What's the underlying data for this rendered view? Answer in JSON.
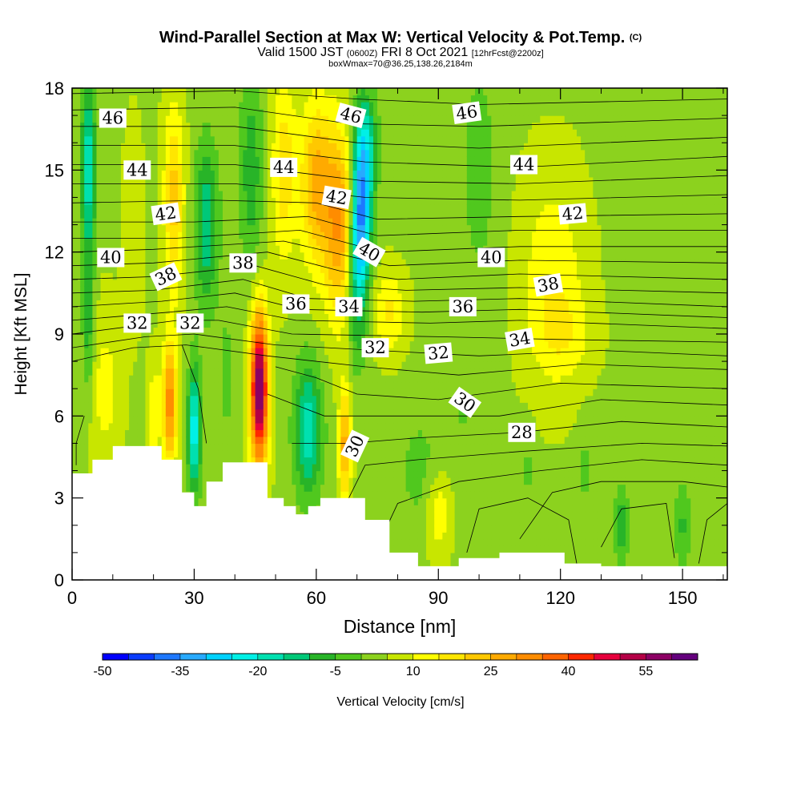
{
  "header": {
    "title_main": "Wind-Parallel Section at Max W: Vertical Velocity & Pot.Temp.",
    "title_copyright": "(C)",
    "valid_prefix": "Valid 1500 JST",
    "valid_utc": "(0600Z)",
    "valid_date": "FRI 8 Oct 2021",
    "forecast": "[12hrFcst@2200z]",
    "box_info": "boxWmax=70@36.25,138.26,2184m"
  },
  "chart_data": {
    "type": "heatmap",
    "xlabel": "Distance [nm]",
    "ylabel": "Height [Kft MSL]",
    "xlim": [
      0,
      161
    ],
    "ylim": [
      0,
      18
    ],
    "x_ticks": [
      0,
      30,
      60,
      90,
      120,
      150
    ],
    "y_ticks": [
      0,
      3,
      6,
      9,
      12,
      15,
      18
    ],
    "colorbar": {
      "label": "Vertical Velocity [cm/s]",
      "ticks": [
        -50,
        -35,
        -20,
        -5,
        10,
        25,
        40,
        55
      ],
      "min": -50,
      "max": 65,
      "step": 5,
      "colors": [
        "#0000ff",
        "#0a3cff",
        "#1e78ff",
        "#28aaff",
        "#00d2ff",
        "#00f0e6",
        "#00e0b0",
        "#00c878",
        "#28b428",
        "#50c81e",
        "#8cd21e",
        "#c8e600",
        "#ffff00",
        "#ffe600",
        "#ffc800",
        "#ffaa00",
        "#ff8c00",
        "#ff6400",
        "#ff2800",
        "#e6003c",
        "#b40046",
        "#8c0064",
        "#64007d"
      ]
    },
    "terrain_kft": [
      [
        0,
        3.9
      ],
      [
        5,
        4.4
      ],
      [
        10,
        4.9
      ],
      [
        18,
        4.9
      ],
      [
        22,
        4.4
      ],
      [
        27,
        3.2
      ],
      [
        30,
        2.7
      ],
      [
        33,
        3.6
      ],
      [
        37,
        4.3
      ],
      [
        44,
        4.3
      ],
      [
        48,
        3.0
      ],
      [
        52,
        2.7
      ],
      [
        55,
        2.4
      ],
      [
        58,
        2.7
      ],
      [
        61,
        3.0
      ],
      [
        68,
        3.0
      ],
      [
        72,
        2.2
      ],
      [
        78,
        1.0
      ],
      [
        85,
        0.5
      ],
      [
        90,
        0.5
      ],
      [
        95,
        0.8
      ],
      [
        105,
        1.0
      ],
      [
        115,
        1.0
      ],
      [
        121,
        0.6
      ],
      [
        130,
        0.5
      ],
      [
        161,
        0.5
      ]
    ],
    "theta_labels": [
      {
        "text": "46",
        "x": 10,
        "y": 16.9,
        "angle": 0
      },
      {
        "text": "46",
        "x": 68.5,
        "y": 17.0,
        "angle": 15
      },
      {
        "text": "46",
        "x": 97,
        "y": 17.1,
        "angle": -8
      },
      {
        "text": "44",
        "x": 16,
        "y": 15.0,
        "angle": 0
      },
      {
        "text": "44",
        "x": 52,
        "y": 15.1,
        "angle": 0
      },
      {
        "text": "44",
        "x": 111,
        "y": 15.2,
        "angle": 0
      },
      {
        "text": "42",
        "x": 23,
        "y": 13.4,
        "angle": -8
      },
      {
        "text": "42",
        "x": 65,
        "y": 14.0,
        "angle": 10
      },
      {
        "text": "42",
        "x": 123,
        "y": 13.4,
        "angle": -5
      },
      {
        "text": "40",
        "x": 9.5,
        "y": 11.8,
        "angle": 0
      },
      {
        "text": "40",
        "x": 73,
        "y": 12.0,
        "angle": 30
      },
      {
        "text": "40",
        "x": 103,
        "y": 11.8,
        "angle": 0
      },
      {
        "text": "38",
        "x": 23,
        "y": 11.1,
        "angle": -25
      },
      {
        "text": "38",
        "x": 42,
        "y": 11.6,
        "angle": 0
      },
      {
        "text": "38",
        "x": 117,
        "y": 10.8,
        "angle": -10
      },
      {
        "text": "36",
        "x": 55,
        "y": 10.1,
        "angle": 0
      },
      {
        "text": "36",
        "x": 96,
        "y": 10.0,
        "angle": 0
      },
      {
        "text": "34",
        "x": 68,
        "y": 10.0,
        "angle": 0
      },
      {
        "text": "34",
        "x": 110,
        "y": 8.8,
        "angle": -10
      },
      {
        "text": "32",
        "x": 16,
        "y": 9.4,
        "angle": 0
      },
      {
        "text": "32",
        "x": 29,
        "y": 9.4,
        "angle": 0
      },
      {
        "text": "32",
        "x": 74.5,
        "y": 8.5,
        "angle": 0
      },
      {
        "text": "32",
        "x": 90,
        "y": 8.3,
        "angle": -5
      },
      {
        "text": "30",
        "x": 69.5,
        "y": 4.9,
        "angle": -65
      },
      {
        "text": "30",
        "x": 96.5,
        "y": 6.5,
        "angle": 35
      },
      {
        "text": "28",
        "x": 110.5,
        "y": 5.4,
        "angle": 0
      }
    ]
  }
}
